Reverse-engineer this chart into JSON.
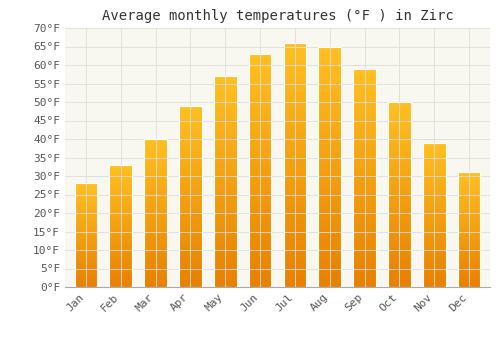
{
  "title": "Average monthly temperatures (°F ) in Zirc",
  "months": [
    "Jan",
    "Feb",
    "Mar",
    "Apr",
    "May",
    "Jun",
    "Jul",
    "Aug",
    "Sep",
    "Oct",
    "Nov",
    "Dec"
  ],
  "values": [
    28,
    33,
    40,
    49,
    57,
    63,
    66,
    65,
    59,
    50,
    39,
    31
  ],
  "bar_color_top": "#FFC020",
  "bar_color_bottom": "#E88000",
  "ylim": [
    0,
    70
  ],
  "ytick_step": 5,
  "background_color": "#FFFFFF",
  "plot_bg_color": "#F8F8F0",
  "grid_color": "#DDDDDD",
  "title_fontsize": 10,
  "tick_fontsize": 8,
  "font_family": "monospace",
  "bar_width": 0.65
}
